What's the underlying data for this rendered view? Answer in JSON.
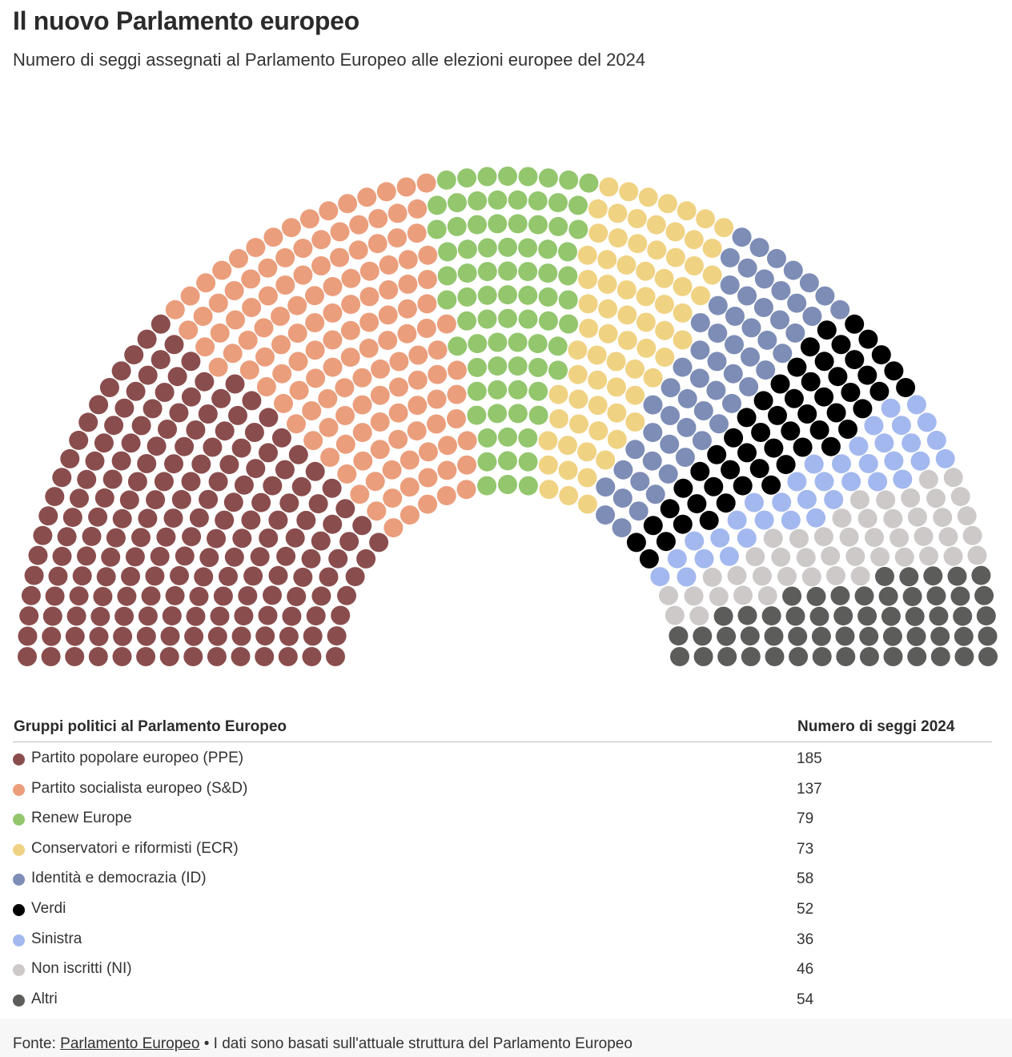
{
  "title": "Il nuovo Parlamento europeo",
  "subtitle": "Numero di seggi assegnati al Parlamento Europeo alle elezioni europee del 2024",
  "table": {
    "col1": "Gruppi politici al Parlamento Europeo",
    "col2": "Numero di seggi 2024"
  },
  "footer": {
    "prefix": "Fonte: ",
    "link": "Parlamento Europeo",
    "suffix": " • I dati sono basati sull'attuale struttura del Parlamento Europeo"
  },
  "chart_data": {
    "type": "parliament",
    "title": "Il nuovo Parlamento europeo",
    "series": [
      {
        "name": "Partito popolare europeo (PPE)",
        "value": 185,
        "color": "#8a4d4d"
      },
      {
        "name": "Partito socialista europeo (S&D)",
        "value": 137,
        "color": "#eb9e7c"
      },
      {
        "name": "Renew Europe",
        "value": 79,
        "color": "#93c66d"
      },
      {
        "name": "Conservatori e riformisti (ECR)",
        "value": 73,
        "color": "#f0d283"
      },
      {
        "name": "Identità e democrazia (ID)",
        "value": 58,
        "color": "#7d8db6"
      },
      {
        "name": "Verdi",
        "value": 52,
        "color": "#000000"
      },
      {
        "name": "Sinistra",
        "value": 36,
        "color": "#a3b8ee"
      },
      {
        "name": "Non iscritti (NI)",
        "value": 46,
        "color": "#cdc9c9"
      },
      {
        "name": "Altri",
        "value": 54,
        "color": "#5c5c5a"
      }
    ]
  }
}
